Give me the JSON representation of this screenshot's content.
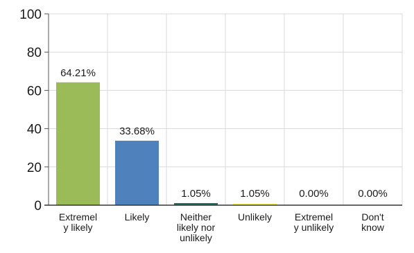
{
  "chart_data": {
    "type": "bar",
    "title": "",
    "xlabel": "",
    "ylabel": "",
    "ylim": [
      0,
      100
    ],
    "yticks": [
      0,
      20,
      40,
      60,
      80,
      100
    ],
    "grid": true,
    "legend": "none",
    "categories": [
      "Extremely likely",
      "Likely",
      "Neither likely nor unlikely",
      "Unlikely",
      "Extremely unlikely",
      "Don't know"
    ],
    "category_label_lines": [
      [
        "Extremel",
        "y likely"
      ],
      [
        "Likely"
      ],
      [
        "Neither",
        "likely nor",
        "unlikely"
      ],
      [
        "Unlikely"
      ],
      [
        "Extremel",
        "y unlikely"
      ],
      [
        "Don't",
        "know"
      ]
    ],
    "values": [
      64.21,
      33.68,
      1.05,
      1.05,
      0.0,
      0.0
    ],
    "data_labels": [
      "64.21%",
      "33.68%",
      "1.05%",
      "1.05%",
      "0.00%",
      "0.00%"
    ],
    "colors": [
      "#9bbb59",
      "#4f81bd",
      "#1f6e5e",
      "#ffff66",
      "#9bbb59",
      "#4f81bd"
    ]
  }
}
